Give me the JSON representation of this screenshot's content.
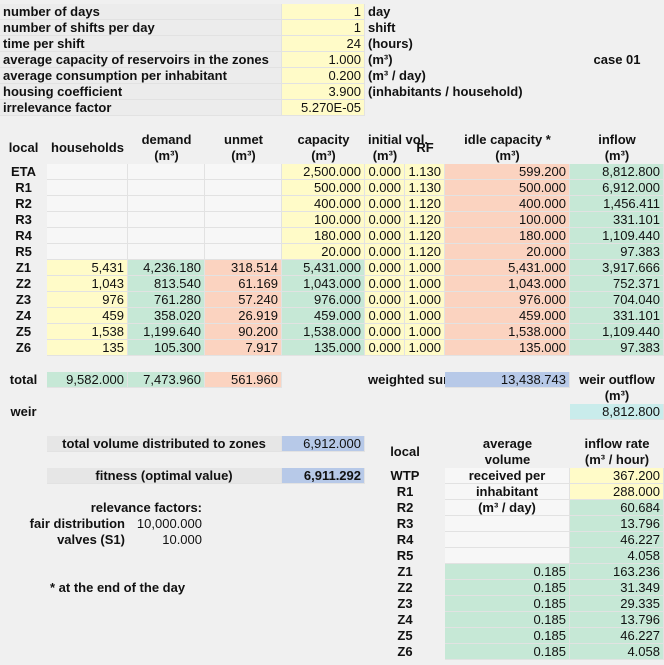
{
  "parameters": [
    {
      "label": "number of days",
      "value": "1",
      "unit": "day"
    },
    {
      "label": "number of shifts per day",
      "value": "1",
      "unit": "shift"
    },
    {
      "label": "time per shift",
      "value": "24",
      "unit": "(hours)"
    },
    {
      "label": "average capacity of reservoirs in the zones",
      "value": "1.000",
      "unit": "(m³)"
    },
    {
      "label": "average consumption per inhabitant",
      "value": "0.200",
      "unit": "(m³ / day)"
    },
    {
      "label": "housing coefficient",
      "value": "3.900",
      "unit": "(inhabitants / household)"
    },
    {
      "label": "irrelevance factor",
      "value": "5.270E-05"
    }
  ],
  "case": "case 01",
  "table": {
    "headers": [
      {
        "name": "local"
      },
      {
        "name": "households"
      },
      {
        "name": "demand",
        "unit": "(m³)"
      },
      {
        "name": "unmet",
        "unit": "(m³)"
      },
      {
        "name": "capacity",
        "unit": "(m³)"
      },
      {
        "name": "initial vol.",
        "unit": "(m³)"
      },
      {
        "name": "RF"
      },
      {
        "name": "idle capacity *",
        "unit": "(m³)"
      },
      {
        "name": "inflow",
        "unit": "(m³)"
      }
    ],
    "rows": [
      {
        "local": "ETA",
        "capacity": "2,500.000",
        "initial": "0.000",
        "rf": "1.130",
        "idle": "599.200",
        "inflow": "8,812.800"
      },
      {
        "local": "R1",
        "capacity": "500.000",
        "initial": "0.000",
        "rf": "1.130",
        "idle": "500.000",
        "inflow": "6,912.000"
      },
      {
        "local": "R2",
        "capacity": "400.000",
        "initial": "0.000",
        "rf": "1.120",
        "idle": "400.000",
        "inflow": "1,456.411"
      },
      {
        "local": "R3",
        "capacity": "100.000",
        "initial": "0.000",
        "rf": "1.120",
        "idle": "100.000",
        "inflow": "331.101"
      },
      {
        "local": "R4",
        "capacity": "180.000",
        "initial": "0.000",
        "rf": "1.120",
        "idle": "180.000",
        "inflow": "1,109.440"
      },
      {
        "local": "R5",
        "capacity": "20.000",
        "initial": "0.000",
        "rf": "1.120",
        "idle": "20.000",
        "inflow": "97.383"
      },
      {
        "local": "Z1",
        "households": "5,431",
        "demand": "4,236.180",
        "unmet": "318.514",
        "capacity": "5,431.000",
        "initial": "0.000",
        "rf": "1.000",
        "idle": "5,431.000",
        "inflow": "3,917.666"
      },
      {
        "local": "Z2",
        "households": "1,043",
        "demand": "813.540",
        "unmet": "61.169",
        "capacity": "1,043.000",
        "initial": "0.000",
        "rf": "1.000",
        "idle": "1,043.000",
        "inflow": "752.371"
      },
      {
        "local": "Z3",
        "households": "976",
        "demand": "761.280",
        "unmet": "57.240",
        "capacity": "976.000",
        "initial": "0.000",
        "rf": "1.000",
        "idle": "976.000",
        "inflow": "704.040"
      },
      {
        "local": "Z4",
        "households": "459",
        "demand": "358.020",
        "unmet": "26.919",
        "capacity": "459.000",
        "initial": "0.000",
        "rf": "1.000",
        "idle": "459.000",
        "inflow": "331.101"
      },
      {
        "local": "Z5",
        "households": "1,538",
        "demand": "1,199.640",
        "unmet": "90.200",
        "capacity": "1,538.000",
        "initial": "0.000",
        "rf": "1.000",
        "idle": "1,538.000",
        "inflow": "1,109.440"
      },
      {
        "local": "Z6",
        "households": "135",
        "demand": "105.300",
        "unmet": "7.917",
        "capacity": "135.000",
        "initial": "0.000",
        "rf": "1.000",
        "idle": "135.000",
        "inflow": "97.383"
      }
    ]
  },
  "totals": {
    "label": "total",
    "households": "9,582.000",
    "demand": "7,473.960",
    "unmet": "561.960"
  },
  "weighted_sum": {
    "label": "weighted sum",
    "value": "13,438.743"
  },
  "weir": {
    "label": "weir",
    "header": "weir outflow",
    "unit": "(m³)",
    "value": "8,812.800"
  },
  "summary": {
    "total_volume": {
      "label": "total volume distributed to zones",
      "value": "6,912.000"
    },
    "fitness": {
      "label": "fitness (optimal value)",
      "value": "6,911.292"
    }
  },
  "relevance": {
    "title": "relevance factors:",
    "items": [
      {
        "label": "fair distribution",
        "value": "10,000.000"
      },
      {
        "label": "valves (S1)",
        "value": "10.000"
      }
    ]
  },
  "footnote": "* at the end of the day",
  "inflow_table": {
    "local_header": "local",
    "average_header": [
      "average",
      "volume",
      "received per",
      "inhabitant",
      "(m³ / day)"
    ],
    "rate_header": [
      "inflow rate",
      "(m³ / hour)"
    ],
    "rows": [
      {
        "local": "WTP",
        "rate": "367.200"
      },
      {
        "local": "R1",
        "rate": "288.000"
      },
      {
        "local": "R2",
        "rate": "60.684"
      },
      {
        "local": "R3",
        "rate": "13.796"
      },
      {
        "local": "R4",
        "rate": "46.227"
      },
      {
        "local": "R5",
        "rate": "4.058"
      },
      {
        "local": "Z1",
        "average": "0.185",
        "rate": "163.236"
      },
      {
        "local": "Z2",
        "average": "0.185",
        "rate": "31.349"
      },
      {
        "local": "Z3",
        "average": "0.185",
        "rate": "29.335"
      },
      {
        "local": "Z4",
        "average": "0.185",
        "rate": "13.796"
      },
      {
        "local": "Z5",
        "average": "0.185",
        "rate": "46.227"
      },
      {
        "local": "Z6",
        "average": "0.185",
        "rate": "4.058"
      }
    ]
  }
}
